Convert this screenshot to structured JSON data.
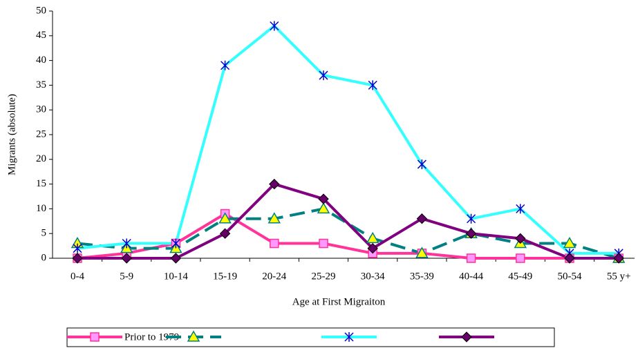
{
  "chart_data": {
    "type": "line",
    "x_label": "Age at First Migraiton",
    "y_label": "Migrants (absolute)",
    "categories": [
      "0-4",
      "5-9",
      "10-14",
      "15-19",
      "20-24",
      "25-29",
      "30-34",
      "35-39",
      "40-44",
      "45-49",
      "50-54",
      "55 y+"
    ],
    "ylim": [
      0,
      50
    ],
    "yticks": [
      0,
      5,
      10,
      15,
      20,
      25,
      30,
      35,
      40,
      45,
      50
    ],
    "grid": false,
    "legend": "bottom",
    "series": [
      {
        "name": "Prior to 1979",
        "color": "#ff3399",
        "marker": "square",
        "marker_color": "#ff99ff",
        "dashed": false,
        "values": [
          0,
          1,
          3,
          9,
          3,
          3,
          1,
          1,
          0,
          0,
          0,
          0
        ]
      },
      {
        "color": "#008080",
        "marker": "triangle",
        "marker_color": "#ffff00",
        "dashed": true,
        "values": [
          3,
          2,
          2,
          8,
          8,
          10,
          4,
          1,
          5,
          3,
          3,
          0
        ]
      },
      {
        "color": "#33ffff",
        "marker": "star",
        "marker_color": "#0000cc",
        "dashed": false,
        "values": [
          2,
          3,
          3,
          39,
          47,
          37,
          35,
          19,
          8,
          10,
          1,
          1
        ]
      },
      {
        "color": "#800080",
        "marker": "diamond",
        "marker_color": "#660066",
        "dashed": false,
        "values": [
          0,
          0,
          0,
          5,
          15,
          12,
          2,
          8,
          5,
          4,
          0,
          0
        ]
      }
    ]
  }
}
